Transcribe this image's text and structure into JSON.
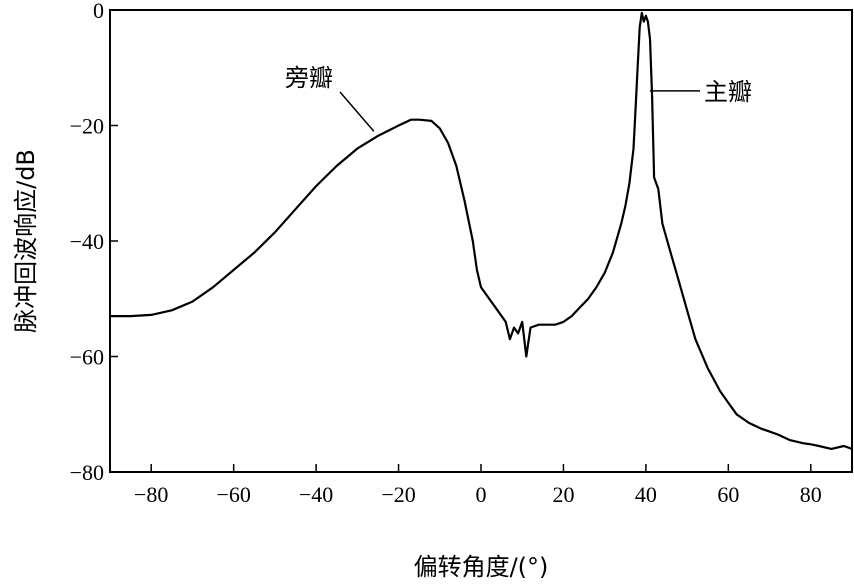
{
  "chart_data": {
    "type": "line",
    "title": "",
    "xlabel": "偏转角度/(°)",
    "ylabel": "脉冲回波响应/dB",
    "xlim": [
      -90,
      90
    ],
    "ylim": [
      -80,
      0
    ],
    "xticks": [
      -80,
      -60,
      -40,
      -20,
      0,
      20,
      40,
      60,
      80
    ],
    "yticks": [
      0,
      -20,
      -40,
      -60,
      -80
    ],
    "grid": false,
    "legend": "none",
    "line_color": "#000000",
    "series": [
      {
        "x": [
          -90,
          -85,
          -80,
          -75,
          -70,
          -65,
          -60,
          -55,
          -50,
          -45,
          -40,
          -35,
          -30,
          -25,
          -20,
          -17,
          -15,
          -12,
          -10,
          -8,
          -6,
          -4,
          -2,
          -1,
          0,
          1,
          2,
          4,
          6,
          7,
          8,
          9,
          10,
          11,
          12,
          14,
          16,
          18,
          20,
          22,
          24,
          26,
          28,
          30,
          32,
          34,
          35,
          36,
          37,
          37.5,
          38,
          38.5,
          39,
          39.5,
          40,
          40.5,
          41,
          41.5,
          42,
          43,
          44,
          46,
          48,
          50,
          52,
          55,
          58,
          60,
          62,
          65,
          68,
          70,
          72,
          75,
          78,
          80,
          82,
          85,
          88,
          90
        ],
        "y": [
          -53,
          -53,
          -52.8,
          -52,
          -50.5,
          -48,
          -45,
          -42,
          -38.5,
          -34.5,
          -30.5,
          -27,
          -24,
          -21.8,
          -20,
          -19,
          -19,
          -19.2,
          -20.5,
          -23,
          -27,
          -33,
          -40,
          -45,
          -48,
          -49,
          -50,
          -52,
          -54,
          -57,
          -55,
          -56,
          -54,
          -60,
          -55,
          -54.5,
          -54.5,
          -54.5,
          -54,
          -53,
          -51.5,
          -50,
          -48,
          -45.5,
          -42,
          -37,
          -34,
          -30,
          -24,
          -17,
          -10,
          -3,
          -0.5,
          -2,
          -1,
          -2,
          -5,
          -15,
          -29,
          -31,
          -37,
          -42,
          -47,
          -52,
          -57,
          -62,
          -66,
          -68,
          -70,
          -71.5,
          -72.5,
          -73,
          -73.5,
          -74.5,
          -75,
          -75.2,
          -75.5,
          -76,
          -75.5,
          -76
        ]
      }
    ],
    "annotations": [
      {
        "text": "旁瓣",
        "x": -26,
        "y": -21
      },
      {
        "text": "主瓣",
        "x": 41,
        "y": -14
      }
    ]
  }
}
